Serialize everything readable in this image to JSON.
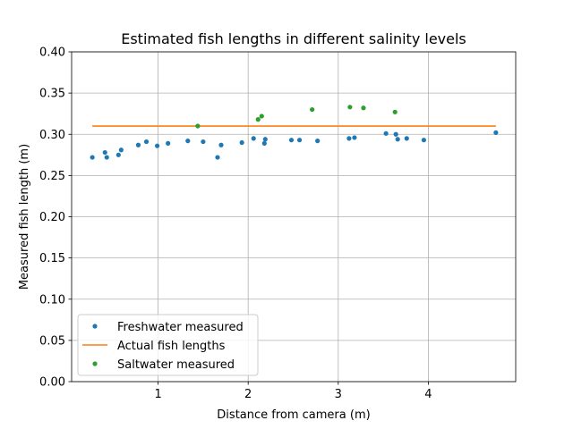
{
  "chart_data": {
    "type": "scatter",
    "title": "Estimated fish lengths in different salinity levels",
    "xlabel": "Distance from camera (m)",
    "ylabel": "Measured fish length (m)",
    "xlim": [
      0.04,
      4.97
    ],
    "ylim": [
      0.0,
      0.4
    ],
    "xticks": [
      1,
      2,
      3,
      4
    ],
    "xtick_labels": [
      "1",
      "2",
      "3",
      "4"
    ],
    "yticks": [
      0.0,
      0.05,
      0.1,
      0.15,
      0.2,
      0.25,
      0.3,
      0.35,
      0.4
    ],
    "ytick_labels": [
      "0.00",
      "0.05",
      "0.10",
      "0.15",
      "0.20",
      "0.25",
      "0.30",
      "0.35",
      "0.40"
    ],
    "grid": true,
    "legend": "lower-left",
    "series": [
      {
        "name": "Freshwater measured",
        "kind": "scatter",
        "color": "#1f77b4",
        "points": [
          [
            0.27,
            0.272
          ],
          [
            0.41,
            0.278
          ],
          [
            0.43,
            0.272
          ],
          [
            0.56,
            0.275
          ],
          [
            0.59,
            0.281
          ],
          [
            0.78,
            0.287
          ],
          [
            0.87,
            0.291
          ],
          [
            0.99,
            0.286
          ],
          [
            1.11,
            0.289
          ],
          [
            1.33,
            0.292
          ],
          [
            1.5,
            0.291
          ],
          [
            1.66,
            0.272
          ],
          [
            1.7,
            0.287
          ],
          [
            1.93,
            0.29
          ],
          [
            2.06,
            0.295
          ],
          [
            2.18,
            0.289
          ],
          [
            2.19,
            0.294
          ],
          [
            2.48,
            0.293
          ],
          [
            2.57,
            0.293
          ],
          [
            2.77,
            0.292
          ],
          [
            3.12,
            0.295
          ],
          [
            3.18,
            0.296
          ],
          [
            3.53,
            0.301
          ],
          [
            3.64,
            0.3
          ],
          [
            3.66,
            0.294
          ],
          [
            3.76,
            0.295
          ],
          [
            3.95,
            0.293
          ],
          [
            4.75,
            0.302
          ]
        ]
      },
      {
        "name": "Actual fish lengths",
        "kind": "line",
        "color": "#ff7f0e",
        "points": [
          [
            0.27,
            0.31
          ],
          [
            4.75,
            0.31
          ]
        ]
      },
      {
        "name": "Saltwater measured",
        "kind": "scatter",
        "color": "#2ca02c",
        "points": [
          [
            1.44,
            0.31
          ],
          [
            2.11,
            0.318
          ],
          [
            2.15,
            0.322
          ],
          [
            2.71,
            0.33
          ],
          [
            3.13,
            0.333
          ],
          [
            3.28,
            0.332
          ],
          [
            3.63,
            0.327
          ]
        ]
      }
    ]
  }
}
